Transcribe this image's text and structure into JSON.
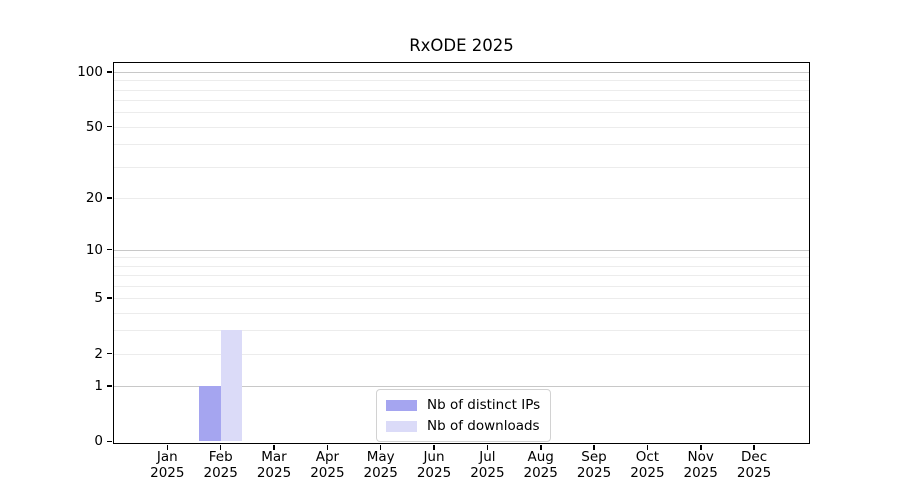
{
  "chart_data": {
    "type": "bar",
    "title": "RxODE 2025",
    "x_tick_labels": [
      [
        "Jan",
        "2025"
      ],
      [
        "Feb",
        "2025"
      ],
      [
        "Mar",
        "2025"
      ],
      [
        "Apr",
        "2025"
      ],
      [
        "May",
        "2025"
      ],
      [
        "Jun",
        "2025"
      ],
      [
        "Jul",
        "2025"
      ],
      [
        "Aug",
        "2025"
      ],
      [
        "Sep",
        "2025"
      ],
      [
        "Oct",
        "2025"
      ],
      [
        "Nov",
        "2025"
      ],
      [
        "Dec",
        "2025"
      ]
    ],
    "series": [
      {
        "name": "Nb of distinct IPs",
        "color": "#a5a5f0",
        "values": [
          0,
          1,
          0,
          0,
          0,
          0,
          0,
          0,
          0,
          0,
          0,
          0
        ]
      },
      {
        "name": "Nb of downloads",
        "color": "#dbdbf8",
        "values": [
          0,
          3,
          0,
          0,
          0,
          0,
          0,
          0,
          0,
          0,
          0,
          0
        ]
      }
    ],
    "y_scale": "log1p",
    "ylim": [
      0,
      112
    ],
    "y_ticks": [
      0,
      1,
      2,
      5,
      10,
      20,
      50,
      100
    ],
    "minor_gridlines": [
      2,
      3,
      4,
      5,
      6,
      7,
      8,
      9,
      20,
      30,
      40,
      50,
      60,
      70,
      80,
      90
    ],
    "major_gridlines": [
      1,
      10,
      100
    ],
    "grid": true,
    "legend_position": "lower center",
    "colors": {
      "grid_minor": "#ececec",
      "grid_major": "#c8c8c8",
      "axis": "#000000",
      "legend_border": "#d2d2d2",
      "background": "#ffffff"
    }
  }
}
